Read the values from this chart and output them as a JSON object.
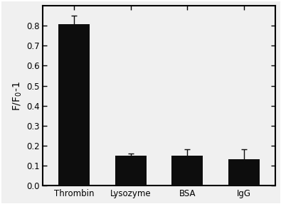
{
  "categories": [
    "Thrombin",
    "Lysozyme",
    "BSA",
    "IgG"
  ],
  "values": [
    0.81,
    0.15,
    0.15,
    0.13
  ],
  "errors": [
    0.04,
    0.01,
    0.03,
    0.05
  ],
  "bar_color": "#0d0d0d",
  "bar_width": 0.55,
  "ylabel": "F/F$_0$-1",
  "ylim": [
    0.0,
    0.9
  ],
  "yticks": [
    0.0,
    0.1,
    0.2,
    0.3,
    0.4,
    0.5,
    0.6,
    0.7,
    0.8
  ],
  "ytick_labels": [
    "0.0",
    "0.1",
    "0.2",
    "0.3",
    "0.4",
    "0.5",
    "0.6",
    "0.7",
    "0.8"
  ],
  "background_color": "#f0f0f0",
  "plot_bg_color": "#f0f0f0",
  "error_capsize": 3,
  "error_color": "#0d0d0d",
  "ylabel_fontsize": 10,
  "tick_fontsize": 8.5,
  "xtick_fontsize": 8.5,
  "spine_linewidth": 1.5,
  "outer_border_color": "#888888"
}
